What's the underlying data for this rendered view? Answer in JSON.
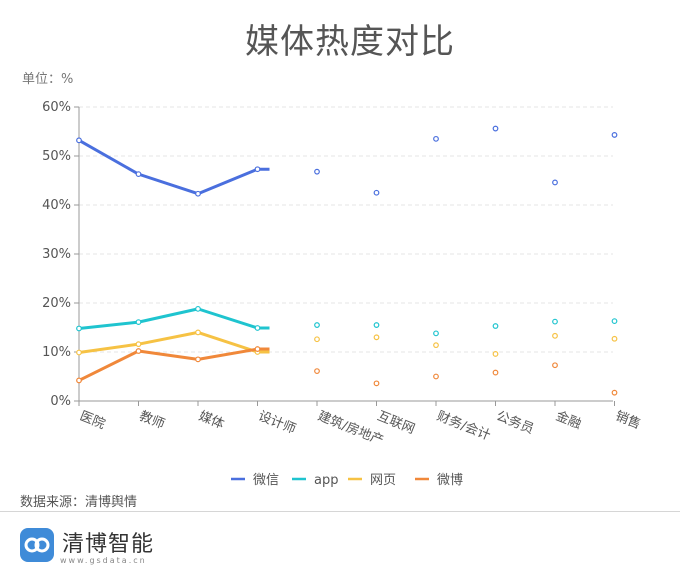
{
  "chart_data": {
    "type": "line",
    "title": "媒体热度对比",
    "unit_label": "单位：%",
    "categories": [
      "医院",
      "教师",
      "媒体",
      "设计师",
      "建筑/房地产",
      "互联网",
      "财务/会计",
      "公务员",
      "金融",
      "销售"
    ],
    "ylim": [
      0,
      60
    ],
    "yticks": [
      "0%",
      "10%",
      "20%",
      "30%",
      "40%",
      "50%",
      "60%"
    ],
    "grid": true,
    "legend_position": "bottom",
    "series": [
      {
        "name": "微信",
        "color": "#4a6fde",
        "values": [
          53.2,
          46.3,
          42.3,
          47.3,
          46.8,
          42.5,
          53.5,
          55.6,
          44.6,
          54.3
        ]
      },
      {
        "name": "app",
        "color": "#1fc4cf",
        "values": [
          14.8,
          16.1,
          18.8,
          14.9,
          15.5,
          15.5,
          13.8,
          15.3,
          16.2,
          16.3
        ]
      },
      {
        "name": "网页",
        "color": "#f6c244",
        "values": [
          9.9,
          11.6,
          14.0,
          10.0,
          12.6,
          13.0,
          11.4,
          9.6,
          13.3,
          12.7
        ]
      },
      {
        "name": "微博",
        "color": "#f0883a",
        "values": [
          4.2,
          10.2,
          8.5,
          10.6,
          6.1,
          3.6,
          5.0,
          5.8,
          7.3,
          1.7
        ]
      }
    ]
  },
  "footer": {
    "source": "数据来源：清博舆情",
    "brand_name": "清博智能",
    "brand_domain": "www.gsdata.cn"
  }
}
